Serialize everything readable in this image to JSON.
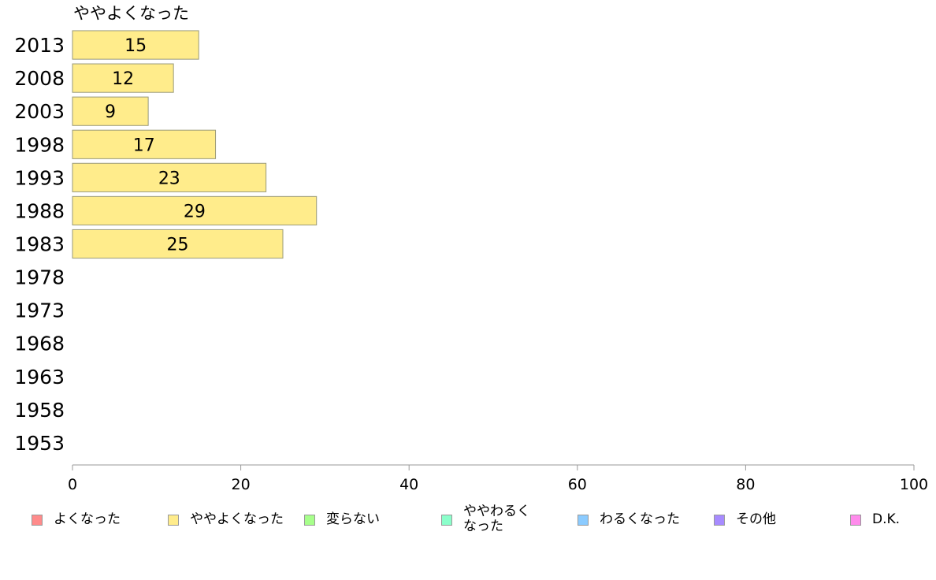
{
  "chart_data": {
    "type": "bar",
    "orientation": "horizontal",
    "title": "ややよくなった",
    "categories": [
      "2013",
      "2008",
      "2003",
      "1998",
      "1993",
      "1988",
      "1983",
      "1978",
      "1973",
      "1968",
      "1963",
      "1958",
      "1953"
    ],
    "series": [
      {
        "name": "ややよくなった",
        "values": [
          15,
          12,
          9,
          17,
          23,
          29,
          25,
          null,
          null,
          null,
          null,
          null,
          null
        ]
      }
    ],
    "xlim": [
      0,
      100
    ],
    "xticks": [
      0,
      20,
      40,
      60,
      80,
      100
    ],
    "bar_color": "#ffec8b",
    "grid": false
  },
  "legend": [
    {
      "label": "よくなった",
      "color": "#ff8b8b"
    },
    {
      "label": "ややよくなった",
      "color": "#ffec8b"
    },
    {
      "label": "変らない",
      "color": "#a7ff8b"
    },
    {
      "label": "ややわるく\nなった",
      "color": "#8bffcb"
    },
    {
      "label": "わるくなった",
      "color": "#8bcbff"
    },
    {
      "label": "その他",
      "color": "#a78bff"
    },
    {
      "label": "D.K.",
      "color": "#ff8bec"
    }
  ]
}
